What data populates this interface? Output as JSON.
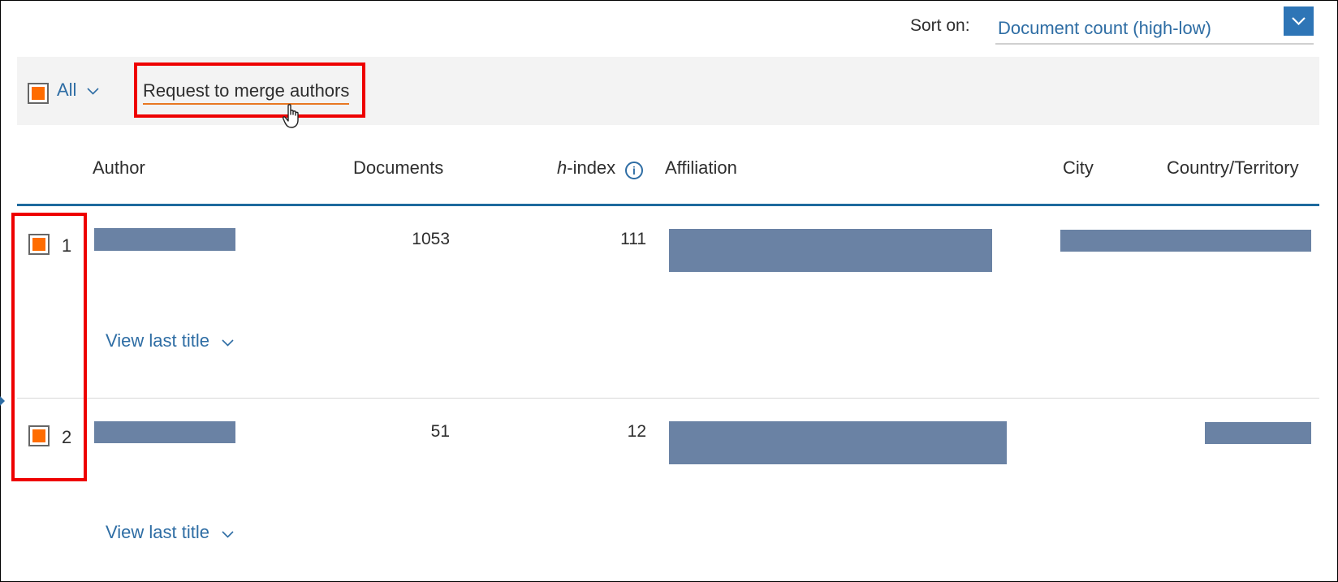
{
  "sort": {
    "label": "Sort on:",
    "value": "Document count (high-low)"
  },
  "toolbar": {
    "select_all_label": "All",
    "merge_label": "Request to merge authors"
  },
  "table": {
    "headers": {
      "author": "Author",
      "documents": "Documents",
      "h_index_prefix": "h",
      "h_index_suffix": "-index",
      "affiliation": "Affiliation",
      "city": "City",
      "country": "Country/Territory"
    },
    "rows": [
      {
        "number": "1",
        "documents": "1053",
        "h_index": "111",
        "view_label": "View last title",
        "checked": true
      },
      {
        "number": "2",
        "documents": "51",
        "h_index": "12",
        "view_label": "View last title",
        "checked": true
      }
    ]
  },
  "colors": {
    "link": "#2e6da4",
    "checkbox_fill": "#ff6c00",
    "highlight": "#ee0000",
    "header_line": "#1e6a9e"
  }
}
